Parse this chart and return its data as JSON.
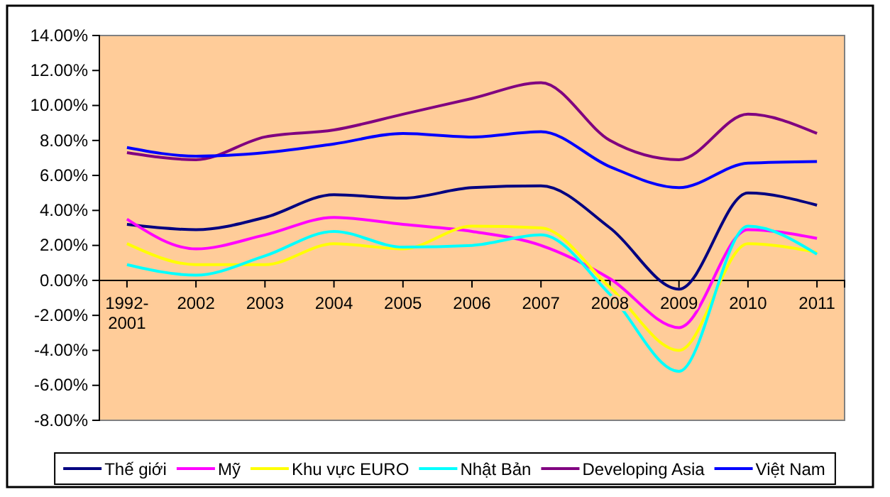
{
  "chart_data": {
    "type": "line",
    "categories": [
      "1992-2001",
      "2002",
      "2003",
      "2004",
      "2005",
      "2006",
      "2007",
      "2008",
      "2009",
      "2010",
      "2011"
    ],
    "ylim": [
      -8,
      14
    ],
    "yticks": [
      {
        "value": -8,
        "label": "-8.00%"
      },
      {
        "value": -6,
        "label": "-6.00%"
      },
      {
        "value": -4,
        "label": "-4.00%"
      },
      {
        "value": -2,
        "label": "-2.00%"
      },
      {
        "value": 0,
        "label": "0.00%"
      },
      {
        "value": 2,
        "label": "2.00%"
      },
      {
        "value": 4,
        "label": "4.00%"
      },
      {
        "value": 6,
        "label": "6.00%"
      },
      {
        "value": 8,
        "label": "8.00%"
      },
      {
        "value": 10,
        "label": "10.00%"
      },
      {
        "value": 12,
        "label": "12.00%"
      },
      {
        "value": 14,
        "label": "14.00%"
      }
    ],
    "grid": false,
    "legend": "bottom",
    "marker": "none",
    "line_style": "solid",
    "series": [
      {
        "name": "Thế giới",
        "color": "#000080",
        "values": [
          3.2,
          2.9,
          3.6,
          4.9,
          4.7,
          5.3,
          5.4,
          3.0,
          -0.5,
          5.0,
          4.3
        ]
      },
      {
        "name": "Mỹ",
        "color": "#ff00ff",
        "values": [
          3.5,
          1.8,
          2.6,
          3.6,
          3.2,
          2.8,
          2.0,
          0.1,
          -2.7,
          2.9,
          2.4
        ]
      },
      {
        "name": "Khu vực EURO",
        "color": "#ffff00",
        "values": [
          2.1,
          0.9,
          0.9,
          2.1,
          1.8,
          3.1,
          3.0,
          -0.4,
          -4.0,
          2.1,
          1.6
        ]
      },
      {
        "name": "Nhật Bản",
        "color": "#00ffff",
        "values": [
          0.9,
          0.3,
          1.4,
          2.8,
          1.9,
          2.0,
          2.6,
          -0.8,
          -5.2,
          3.1,
          1.5
        ]
      },
      {
        "name": "Developing Asia",
        "color": "#800080",
        "values": [
          7.3,
          6.9,
          8.2,
          8.6,
          9.5,
          10.4,
          11.3,
          8.0,
          6.9,
          9.5,
          8.4
        ]
      },
      {
        "name": "Việt Nam",
        "color": "#0000ff",
        "values": [
          7.6,
          7.1,
          7.3,
          7.8,
          8.4,
          8.2,
          8.5,
          6.5,
          5.3,
          6.7,
          6.8
        ]
      }
    ]
  }
}
